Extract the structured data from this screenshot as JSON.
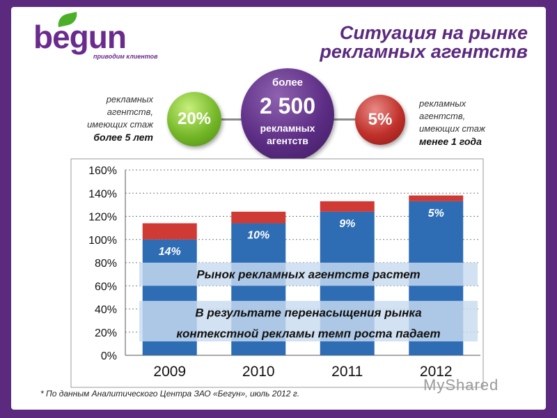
{
  "brand": {
    "logo_word": "begun",
    "logo_tagline": "приводим клиентов"
  },
  "header": {
    "title_line1": "Ситуация на рынке",
    "title_line2": "рекламных агентств"
  },
  "stats": {
    "left_value": "20%",
    "left_text_l1": "рекламных",
    "left_text_l2": "агентств,",
    "left_text_l3": "имеющих стаж",
    "left_text_strong": "более 5 лет",
    "center_l1": "более",
    "center_l2": "2 500",
    "center_l3": "рекламных",
    "center_l4": "агентств",
    "right_value": "5%",
    "right_text_l1": "рекламных",
    "right_text_l2": "агентств,",
    "right_text_l3": "имеющих стаж",
    "right_text_strong": "менее 1 года",
    "colors": {
      "green": "#76b82a",
      "purple": "#5c2d84",
      "red": "#c0302a"
    }
  },
  "chart_data": {
    "type": "bar",
    "stacked": true,
    "categories": [
      "2009",
      "2010",
      "2011",
      "2012"
    ],
    "series": [
      {
        "values": [
          100,
          114,
          124,
          133
        ],
        "color": "#2e6db4"
      },
      {
        "values": [
          14,
          10,
          9,
          5
        ],
        "color": "#d03a34"
      }
    ],
    "bar_labels": [
      "14%",
      "10%",
      "9%",
      "5%"
    ],
    "y_ticks": [
      "0%",
      "20%",
      "40%",
      "60%",
      "80%",
      "100%",
      "120%",
      "140%",
      "160%"
    ],
    "ylim": [
      0,
      160
    ],
    "grid": true,
    "annotations": [
      "Рынок рекламных агентств растет",
      "В результате перенасыщения рынка",
      "контекстной рекламы темп роста падает"
    ]
  },
  "footnote": "* По данным Аналитического Центра ЗАО «Бегун», июль 2012 г.",
  "watermark": "MyShared"
}
